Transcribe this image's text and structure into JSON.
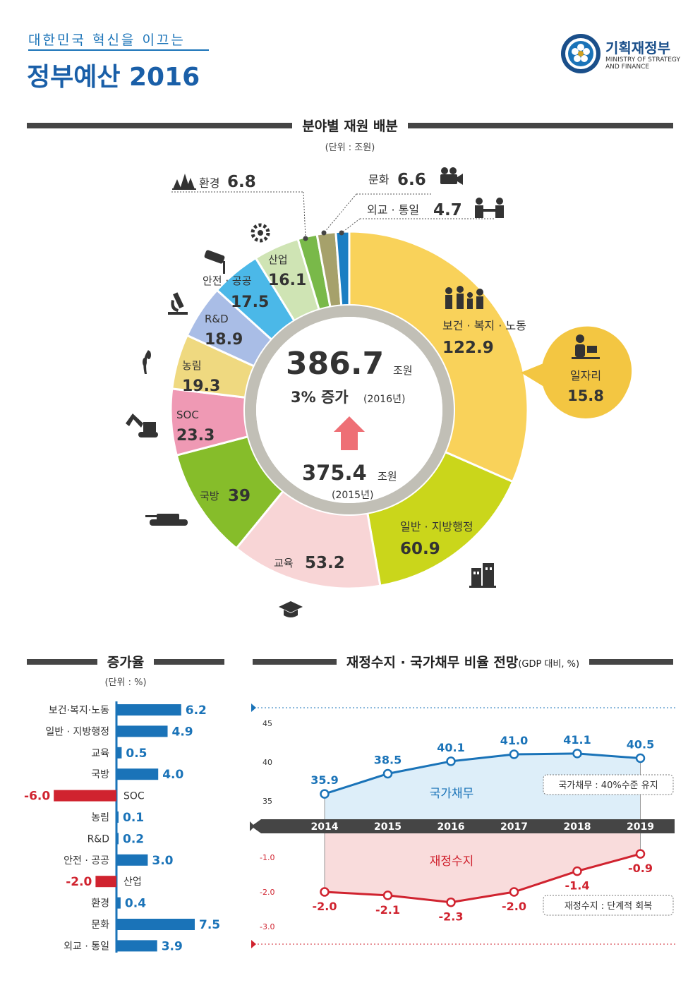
{
  "header": {
    "subtitle": "대한민국 혁신을 이끄는",
    "title": "정부예산 2016",
    "ministry_name": "기획재정부",
    "ministry_en_1": "MINISTRY OF STRATEGY",
    "ministry_en_2": "AND FINANCE"
  },
  "colors": {
    "brand_blue": "#1a73b8",
    "dark_bar": "#454545",
    "red": "#d0232f"
  },
  "chart_data": [
    {
      "type": "pie",
      "title": "분야별 재원 배분",
      "unit": "(단위 : 조원)",
      "total": {
        "value": "386.7",
        "unit": "조원",
        "growth": "3% 증가",
        "year": "(2016년)"
      },
      "previous": {
        "value": "375.4",
        "unit": "조원",
        "year": "(2015년)"
      },
      "slices": [
        {
          "label": "보건 · 복지 · 노동",
          "value": 122.9,
          "color": "#f9d25a",
          "icon": "family-icon"
        },
        {
          "label": "일반 · 지방행정",
          "value": 60.9,
          "color": "#cad61b",
          "icon": "building-icon"
        },
        {
          "label": "교육",
          "value": 53.2,
          "color": "#f8d5d6",
          "icon": "graduation-cap-icon"
        },
        {
          "label": "국방",
          "value": 39,
          "color": "#86bd2a",
          "icon": "tank-icon"
        },
        {
          "label": "SOC",
          "value": 23.3,
          "color": "#ef99b4",
          "icon": "excavator-icon"
        },
        {
          "label": "농림",
          "value": 19.3,
          "color": "#efd980",
          "icon": "wheat-icon"
        },
        {
          "label": "R&D",
          "value": 18.9,
          "color": "#a9bde6",
          "icon": "microscope-icon"
        },
        {
          "label": "안전 · 공공",
          "value": 17.5,
          "color": "#4bb8e8",
          "icon": "cctv-icon"
        },
        {
          "label": "산업",
          "value": 16.1,
          "color": "#cfe4b4",
          "icon": "gear-icon"
        },
        {
          "label": "환경",
          "value": 6.8,
          "color": "#79b949",
          "icon": "forest-icon"
        },
        {
          "label": "문화",
          "value": 6.6,
          "color": "#a6a16b",
          "icon": "camera-icon"
        },
        {
          "label": "외교 · 통일",
          "value": 4.7,
          "color": "#1a7ec3",
          "icon": "handshake-icon"
        }
      ],
      "callout": {
        "label": "일자리",
        "value": "15.8",
        "icon": "worker-icon"
      }
    },
    {
      "type": "bar",
      "title": "증가율",
      "unit": "(단위 : %)",
      "categories": [
        "보건·복지·노동",
        "일반 · 지방행정",
        "교육",
        "국방",
        "SOC",
        "농림",
        "R&D",
        "안전 · 공공",
        "산업",
        "환경",
        "문화",
        "외교 · 통일"
      ],
      "values": [
        6.2,
        4.9,
        0.5,
        4.0,
        -6.0,
        0.1,
        0.2,
        3.0,
        -2.0,
        0.4,
        7.5,
        3.9
      ],
      "value_labels": [
        "6.2",
        "4.9",
        "0.5",
        "4.0",
        "-6.0",
        "0.1",
        "0.2",
        "3.0",
        "-2.0",
        "0.4",
        "7.5",
        "3.9"
      ],
      "positive_color": "#1a73b8",
      "negative_color": "#d0232f"
    },
    {
      "type": "line",
      "title": "재정수지 · 국가채무 비율 전망",
      "title_unit": "(GDP 대비, %)",
      "x": [
        "2014",
        "2015",
        "2016",
        "2017",
        "2018",
        "2019"
      ],
      "debt": {
        "name": "국가채무",
        "values": [
          35.9,
          38.5,
          40.1,
          41.0,
          41.1,
          40.5
        ],
        "labels": [
          "35.9",
          "38.5",
          "40.1",
          "41.0",
          "41.1",
          "40.5"
        ],
        "ticks": [
          "45",
          "40",
          "35"
        ],
        "note": "국가채무 : 40%수준 유지",
        "color": "#1a73b8"
      },
      "balance": {
        "name": "재정수지",
        "values": [
          -2.0,
          -2.1,
          -2.3,
          -2.0,
          -1.4,
          -0.9
        ],
        "labels": [
          "-2.0",
          "-2.1",
          "-2.3",
          "-2.0",
          "-1.4",
          "-0.9"
        ],
        "ticks": [
          "-1.0",
          "-2.0",
          "-3.0"
        ],
        "note": "재정수지 : 단계적 회복",
        "color": "#d0232f"
      }
    }
  ]
}
